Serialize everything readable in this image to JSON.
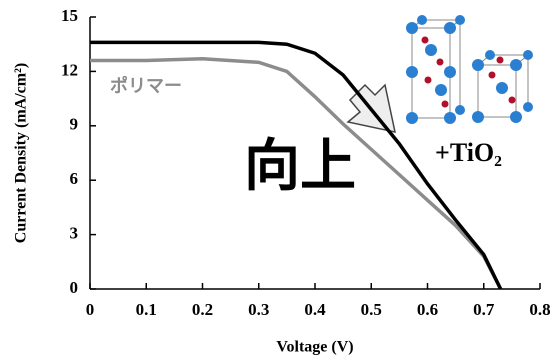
{
  "chart_data": {
    "type": "line",
    "x_label": "Voltage (V)",
    "y_label": "Current Density (mA/cm²)",
    "x": [
      0,
      0.1,
      0.2,
      0.3,
      0.35,
      0.4,
      0.45,
      0.5,
      0.55,
      0.6,
      0.65,
      0.7,
      0.73
    ],
    "series": [
      {
        "name": "ポリマー",
        "color": "#8c8c8c",
        "values": [
          12.6,
          12.6,
          12.7,
          12.5,
          12.0,
          10.6,
          9.1,
          7.7,
          6.3,
          4.9,
          3.5,
          1.8,
          0
        ]
      },
      {
        "name": "+TiO₂",
        "color": "#000000",
        "values": [
          13.6,
          13.6,
          13.6,
          13.6,
          13.5,
          13.0,
          11.8,
          9.9,
          8.0,
          5.8,
          3.8,
          1.9,
          0
        ]
      }
    ],
    "annotation": "向上",
    "xlim": [
      0,
      0.8
    ],
    "xticks": [
      0,
      0.1,
      0.2,
      0.3,
      0.4,
      0.5,
      0.6,
      0.7,
      0.8
    ],
    "ylim": [
      0,
      15
    ],
    "yticks": [
      0,
      3,
      6,
      9,
      12,
      15
    ]
  }
}
